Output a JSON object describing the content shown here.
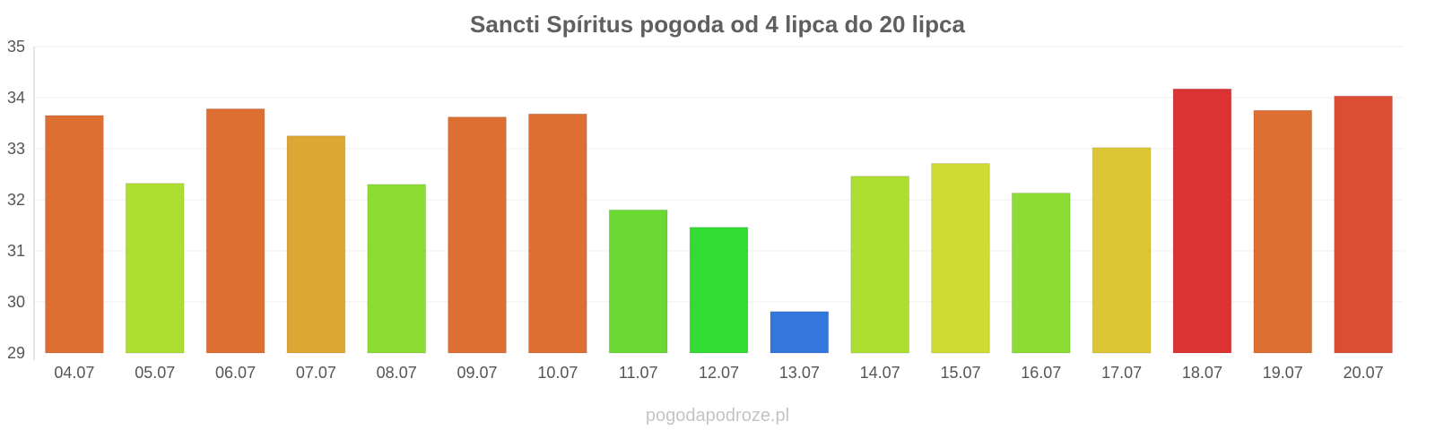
{
  "chart_data": {
    "type": "bar",
    "title": "Sancti Spíritus pogoda od 4 lipca do 20 lipca",
    "xlabel": "",
    "ylabel": "",
    "ylim": [
      29,
      35
    ],
    "yticks": [
      "29",
      "30",
      "31",
      "32",
      "33",
      "34",
      "35"
    ],
    "grid": true,
    "categories": [
      "04.07",
      "05.07",
      "06.07",
      "07.07",
      "08.07",
      "09.07",
      "10.07",
      "11.07",
      "12.07",
      "13.07",
      "14.07",
      "15.07",
      "16.07",
      "17.07",
      "18.07",
      "19.07",
      "20.07"
    ],
    "values": [
      33.65,
      32.32,
      33.78,
      33.25,
      32.3,
      33.62,
      33.68,
      31.8,
      31.46,
      29.81,
      32.46,
      32.71,
      32.13,
      33.02,
      34.17,
      33.75,
      34.03
    ],
    "colors": [
      "#dd6f33",
      "#addf33",
      "#dd6f33",
      "#dca733",
      "#8bdc33",
      "#dd6f33",
      "#dd6f33",
      "#6ad933",
      "#33dc33",
      "#3377dd",
      "#addf33",
      "#cfdc33",
      "#8bdc33",
      "#dbc733",
      "#db3333",
      "#dd6f33",
      "#db4e33"
    ]
  },
  "watermark": "pogodapodroze.pl"
}
